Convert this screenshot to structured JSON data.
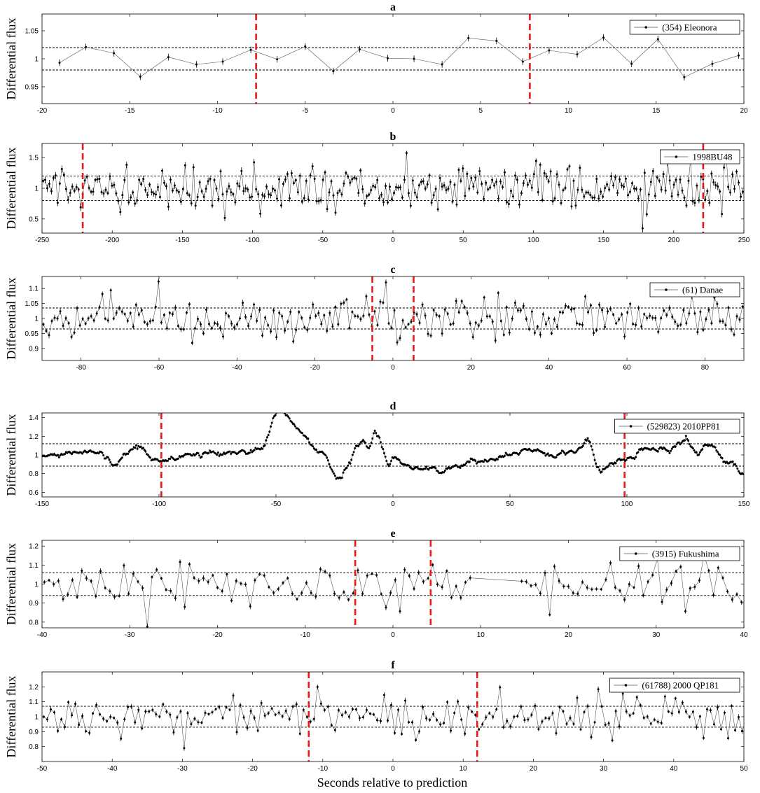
{
  "figure": {
    "ylabel": "Differential flux",
    "xlabel": "Seconds relative to prediction",
    "colors": {
      "axis": "#000000",
      "data": "#000000",
      "event": "#e8191b",
      "threshold": "#000000"
    }
  },
  "chart_data": [
    {
      "type": "line",
      "panel": "a",
      "title": "a",
      "legend": "(354) Eleonora",
      "legend_position": "top-right",
      "xlim": [
        -20,
        20
      ],
      "ylim": [
        0.92,
        1.08
      ],
      "xticks": [
        -20,
        -15,
        -10,
        -5,
        0,
        5,
        10,
        15,
        20
      ],
      "yticks": [
        0.95,
        1,
        1.05
      ],
      "thresholds": [
        0.98,
        1.02
      ],
      "events": [
        -7.8,
        7.8
      ],
      "series": [
        {
          "name": "(354) Eleonora",
          "x": [
            -19.0,
            -17.5,
            -15.9,
            -14.4,
            -12.8,
            -11.2,
            -9.7,
            -8.1,
            -6.6,
            -5.0,
            -3.4,
            -1.9,
            -0.3,
            1.2,
            2.8,
            4.3,
            5.9,
            7.4,
            8.9,
            10.5,
            12.0,
            13.6,
            15.1,
            16.6,
            18.2,
            19.7
          ],
          "y": [
            0.993,
            1.021,
            1.01,
            0.968,
            1.003,
            0.99,
            0.995,
            1.016,
            0.999,
            1.022,
            0.978,
            1.017,
            1.001,
            1.0,
            0.99,
            1.037,
            1.032,
            0.995,
            1.015,
            1.008,
            1.038,
            0.991,
            1.035,
            0.967,
            0.991,
            1.006
          ]
        }
      ]
    },
    {
      "type": "line",
      "panel": "b",
      "title": "b",
      "legend": "1998BU48",
      "legend_position": "top-right",
      "xlim": [
        -250,
        250
      ],
      "ylim": [
        0.27,
        1.73
      ],
      "xticks": [
        -250,
        -200,
        -150,
        -100,
        -50,
        0,
        50,
        100,
        150,
        200,
        250
      ],
      "yticks": [
        0.5,
        1,
        1.5
      ],
      "thresholds": [
        0.8,
        1.2
      ],
      "events": [
        -221,
        221
      ],
      "generator": {
        "seed": 2,
        "n": 336,
        "mean": 1.0,
        "sd": 0.16,
        "ar": 0.0,
        "spike_prob": 0.06,
        "spike_amp": 0.42,
        "err": 0.05
      }
    },
    {
      "type": "line",
      "panel": "c",
      "title": "c",
      "legend": "(61) Danae",
      "legend_position": "top-right",
      "xlim": [
        -90,
        90
      ],
      "ylim": [
        0.86,
        1.14
      ],
      "xticks": [
        -80,
        -60,
        -40,
        -20,
        0,
        20,
        40,
        60,
        80
      ],
      "yticks": [
        0.9,
        0.95,
        1,
        1.05,
        1.1
      ],
      "thresholds": [
        0.965,
        1.035
      ],
      "events": [
        -5.3,
        5.3
      ],
      "generator": {
        "seed": 3,
        "n": 250,
        "mean": 1.0,
        "sd": 0.034,
        "ar": 0.0,
        "spike_prob": 0.05,
        "spike_amp": 0.05,
        "err": 0.008
      }
    },
    {
      "type": "line",
      "panel": "d",
      "title": "d",
      "legend": "(529823) 2010PP81",
      "legend_position": "top-right",
      "xlim": [
        -150,
        150
      ],
      "ylim": [
        0.55,
        1.45
      ],
      "xticks": [
        -150,
        -100,
        -50,
        0,
        50,
        100,
        150
      ],
      "yticks": [
        0.6,
        0.8,
        1,
        1.2,
        1.4
      ],
      "thresholds": [
        0.88,
        1.12
      ],
      "events": [
        -99,
        99
      ],
      "generator": {
        "seed": 4,
        "n": 600,
        "mean": 1.0,
        "sd": 0.012,
        "ar": 0.85,
        "spike_prob": 0.0,
        "spike_amp": 0.0,
        "err": 0.012
      },
      "trend": {
        "x": [
          -150,
          -125,
          -120,
          -115,
          -110,
          -100,
          -80,
          -60,
          -56,
          -53,
          -51,
          -49,
          -46,
          -42,
          -38,
          -34,
          -30,
          -27,
          -24,
          -22,
          -19,
          -16,
          -13,
          -10,
          -8,
          -6,
          -4,
          -2,
          0,
          5,
          10,
          15,
          20,
          30,
          40,
          50,
          60,
          70,
          80,
          83,
          85,
          87,
          90,
          100,
          110,
          120,
          125,
          130,
          135,
          140,
          145,
          150
        ],
        "y": [
          0.99,
          1.06,
          0.88,
          1.0,
          1.05,
          0.97,
          1.0,
          1.02,
          1.06,
          1.22,
          1.42,
          1.47,
          1.42,
          1.32,
          1.23,
          1.1,
          1.0,
          0.9,
          0.76,
          0.78,
          0.92,
          1.12,
          1.15,
          1.05,
          1.2,
          1.14,
          1.0,
          0.88,
          0.97,
          0.9,
          0.88,
          0.87,
          0.85,
          0.9,
          0.93,
          1.0,
          1.05,
          1.0,
          1.05,
          1.15,
          1.08,
          0.85,
          0.84,
          1.0,
          1.02,
          1.1,
          1.2,
          1.0,
          1.1,
          1.0,
          0.95,
          0.8
        ]
      }
    },
    {
      "type": "line",
      "panel": "e",
      "title": "e",
      "legend": "(3915) Fukushima",
      "legend_position": "top-right",
      "xlim": [
        -40,
        40
      ],
      "ylim": [
        0.77,
        1.23
      ],
      "xticks": [
        -40,
        -30,
        -20,
        -10,
        0,
        10,
        20,
        30,
        40
      ],
      "yticks": [
        0.8,
        0.9,
        1,
        1.1,
        1.2
      ],
      "thresholds": [
        0.94,
        1.06
      ],
      "events": [
        -4.3,
        4.3
      ],
      "gap": [
        9.3,
        14.3
      ],
      "generator": {
        "seed": 5,
        "n": 150,
        "mean": 1.0,
        "sd": 0.055,
        "ar": 0.0,
        "spike_prob": 0.07,
        "spike_amp": 0.09,
        "err": 0.012
      }
    },
    {
      "type": "line",
      "panel": "f",
      "title": "f",
      "legend": "(61788) 2000 QP181",
      "legend_position": "top-right",
      "xlim": [
        -50,
        50
      ],
      "ylim": [
        0.7,
        1.3
      ],
      "xticks": [
        -50,
        -40,
        -30,
        -20,
        -10,
        0,
        10,
        20,
        30,
        40,
        50
      ],
      "yticks": [
        0.8,
        0.9,
        1,
        1.1,
        1.2
      ],
      "thresholds": [
        0.93,
        1.07
      ],
      "events": [
        -12,
        12
      ],
      "generator": {
        "seed": 6,
        "n": 200,
        "mean": 1.0,
        "sd": 0.065,
        "ar": 0.0,
        "spike_prob": 0.07,
        "spike_amp": 0.11,
        "err": 0.015
      }
    }
  ]
}
